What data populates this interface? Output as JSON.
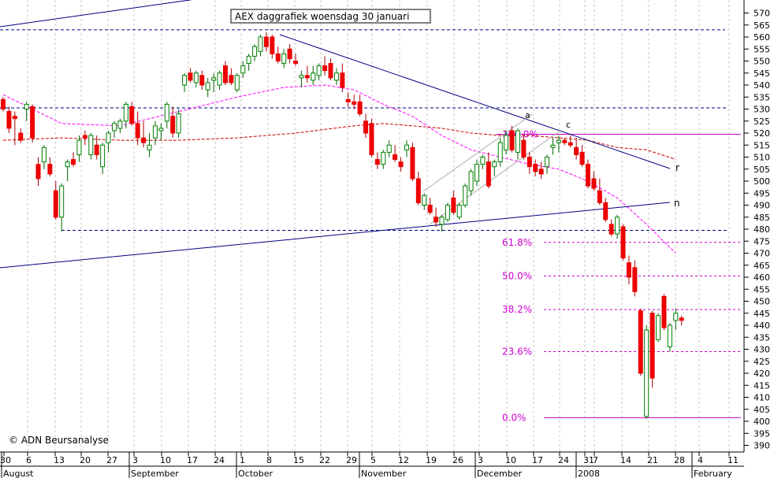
{
  "chart_data": {
    "type": "candlestick",
    "title": "AEX daggrafiek woensdag 30 januari",
    "copyright": "© ADN Beursanalyse",
    "y_ticks": [
      570,
      565,
      560,
      555,
      550,
      545,
      540,
      535,
      530,
      525,
      520,
      515,
      510,
      505,
      500,
      495,
      490,
      485,
      480,
      475,
      470,
      465,
      460,
      455,
      450,
      445,
      440,
      435,
      430,
      425,
      420,
      415,
      410,
      405,
      400,
      395,
      390
    ],
    "ylim": [
      387,
      573
    ],
    "date_ticks": [
      "30",
      "6",
      "13",
      "20",
      "27",
      "3",
      "10",
      "17",
      "24",
      "1",
      "8",
      "15",
      "22",
      "29",
      "5",
      "12",
      "19",
      "26",
      "3",
      "10",
      "17",
      "24",
      "31",
      "7",
      "14",
      "21",
      "28",
      "4",
      "11"
    ],
    "month_labels": [
      "August",
      "September",
      "October",
      "November",
      "December",
      "2008",
      "February"
    ],
    "fib_levels": [
      {
        "label": "100.0%",
        "value": 519.5
      },
      {
        "label": "61.8%",
        "value": 474.5
      },
      {
        "label": "50.0%",
        "value": 460.5
      },
      {
        "label": "38.2%",
        "value": 446.5
      },
      {
        "label": "23.6%",
        "value": 429
      },
      {
        "label": "0.0%",
        "value": 401.5
      }
    ],
    "trendline_labels": [
      "r",
      "n"
    ],
    "wave_labels": [
      "a",
      "c"
    ],
    "candles": [
      {
        "o": 534,
        "h": 535,
        "l": 529,
        "c": 530
      },
      {
        "o": 529,
        "h": 531,
        "l": 520,
        "c": 522
      },
      {
        "o": 527,
        "h": 529,
        "l": 515,
        "c": 526
      },
      {
        "o": 520,
        "h": 522,
        "l": 516,
        "c": 517
      },
      {
        "o": 530,
        "h": 533,
        "l": 525,
        "c": 532
      },
      {
        "o": 531,
        "h": 532,
        "l": 516,
        "c": 518
      },
      {
        "o": 507,
        "h": 510,
        "l": 498,
        "c": 501
      },
      {
        "o": 508,
        "h": 515,
        "l": 505,
        "c": 514
      },
      {
        "o": 507,
        "h": 510,
        "l": 502,
        "c": 503
      },
      {
        "o": 496,
        "h": 500,
        "l": 484,
        "c": 485
      },
      {
        "o": 485,
        "h": 499,
        "l": 479,
        "c": 498
      },
      {
        "o": 506,
        "h": 509,
        "l": 500,
        "c": 508
      },
      {
        "o": 509,
        "h": 512,
        "l": 506,
        "c": 507
      },
      {
        "o": 511,
        "h": 519,
        "l": 508,
        "c": 517
      },
      {
        "o": 519,
        "h": 521,
        "l": 515,
        "c": 518
      },
      {
        "o": 511,
        "h": 520,
        "l": 509,
        "c": 519
      },
      {
        "o": 515,
        "h": 519,
        "l": 509,
        "c": 511
      },
      {
        "o": 506,
        "h": 516,
        "l": 503,
        "c": 515
      },
      {
        "o": 516,
        "h": 521,
        "l": 512,
        "c": 520
      },
      {
        "o": 521,
        "h": 525,
        "l": 518,
        "c": 524
      },
      {
        "o": 522,
        "h": 526,
        "l": 520,
        "c": 525
      },
      {
        "o": 525,
        "h": 533,
        "l": 522,
        "c": 532
      },
      {
        "o": 531,
        "h": 533,
        "l": 523,
        "c": 524
      },
      {
        "o": 524,
        "h": 529,
        "l": 515,
        "c": 518
      },
      {
        "o": 518,
        "h": 525,
        "l": 514,
        "c": 516
      },
      {
        "o": 513,
        "h": 520,
        "l": 510,
        "c": 515
      },
      {
        "o": 518,
        "h": 525,
        "l": 515,
        "c": 523
      },
      {
        "o": 521,
        "h": 524,
        "l": 517,
        "c": 522
      },
      {
        "o": 525,
        "h": 533,
        "l": 522,
        "c": 532
      },
      {
        "o": 527,
        "h": 531,
        "l": 518,
        "c": 520
      },
      {
        "o": 520,
        "h": 530,
        "l": 518,
        "c": 528
      },
      {
        "o": 540,
        "h": 545,
        "l": 537,
        "c": 544
      },
      {
        "o": 545,
        "h": 547,
        "l": 541,
        "c": 542
      },
      {
        "o": 541,
        "h": 546,
        "l": 539,
        "c": 545
      },
      {
        "o": 544,
        "h": 546,
        "l": 538,
        "c": 540
      },
      {
        "o": 538,
        "h": 543,
        "l": 535,
        "c": 541
      },
      {
        "o": 542,
        "h": 545,
        "l": 537,
        "c": 543
      },
      {
        "o": 540,
        "h": 546,
        "l": 538,
        "c": 545
      },
      {
        "o": 548,
        "h": 550,
        "l": 540,
        "c": 541
      },
      {
        "o": 544,
        "h": 547,
        "l": 540,
        "c": 541
      },
      {
        "o": 538,
        "h": 545,
        "l": 537,
        "c": 544
      },
      {
        "o": 545,
        "h": 550,
        "l": 543,
        "c": 548
      },
      {
        "o": 549,
        "h": 553,
        "l": 546,
        "c": 552
      },
      {
        "o": 552,
        "h": 557,
        "l": 550,
        "c": 556
      },
      {
        "o": 554,
        "h": 561,
        "l": 552,
        "c": 560
      },
      {
        "o": 560,
        "h": 562,
        "l": 554,
        "c": 556
      },
      {
        "o": 560,
        "h": 561,
        "l": 551,
        "c": 553
      },
      {
        "o": 553,
        "h": 556,
        "l": 549,
        "c": 550
      },
      {
        "o": 549,
        "h": 555,
        "l": 547,
        "c": 553
      },
      {
        "o": 555,
        "h": 557,
        "l": 549,
        "c": 551
      },
      {
        "o": 550,
        "h": 553,
        "l": 548,
        "c": 549
      },
      {
        "o": 543,
        "h": 546,
        "l": 539,
        "c": 544
      },
      {
        "o": 544,
        "h": 548,
        "l": 541,
        "c": 543
      },
      {
        "o": 542,
        "h": 548,
        "l": 540,
        "c": 545
      },
      {
        "o": 544,
        "h": 549,
        "l": 542,
        "c": 548
      },
      {
        "o": 548,
        "h": 552,
        "l": 544,
        "c": 546
      },
      {
        "o": 549,
        "h": 551,
        "l": 542,
        "c": 543
      },
      {
        "o": 542,
        "h": 547,
        "l": 540,
        "c": 545
      },
      {
        "o": 545,
        "h": 549,
        "l": 537,
        "c": 539
      },
      {
        "o": 534,
        "h": 537,
        "l": 531,
        "c": 533
      },
      {
        "o": 533,
        "h": 536,
        "l": 530,
        "c": 532
      },
      {
        "o": 533,
        "h": 536,
        "l": 527,
        "c": 528
      },
      {
        "o": 525,
        "h": 528,
        "l": 518,
        "c": 520
      },
      {
        "o": 524,
        "h": 526,
        "l": 510,
        "c": 511
      },
      {
        "o": 509,
        "h": 512,
        "l": 505,
        "c": 507
      },
      {
        "o": 507,
        "h": 513,
        "l": 505,
        "c": 512
      },
      {
        "o": 512,
        "h": 517,
        "l": 510,
        "c": 515
      },
      {
        "o": 511,
        "h": 515,
        "l": 508,
        "c": 509
      },
      {
        "o": 508,
        "h": 510,
        "l": 504,
        "c": 506
      },
      {
        "o": 513,
        "h": 517,
        "l": 510,
        "c": 515
      },
      {
        "o": 514,
        "h": 516,
        "l": 500,
        "c": 501
      },
      {
        "o": 501,
        "h": 504,
        "l": 490,
        "c": 491
      },
      {
        "o": 490,
        "h": 495,
        "l": 488,
        "c": 494
      },
      {
        "o": 490,
        "h": 493,
        "l": 486,
        "c": 487
      },
      {
        "o": 485,
        "h": 489,
        "l": 481,
        "c": 483
      },
      {
        "o": 482,
        "h": 486,
        "l": 479,
        "c": 485
      },
      {
        "o": 484,
        "h": 491,
        "l": 483,
        "c": 490
      },
      {
        "o": 493,
        "h": 496,
        "l": 486,
        "c": 487
      },
      {
        "o": 485,
        "h": 491,
        "l": 484,
        "c": 490
      },
      {
        "o": 490,
        "h": 499,
        "l": 489,
        "c": 498
      },
      {
        "o": 496,
        "h": 505,
        "l": 494,
        "c": 504
      },
      {
        "o": 500,
        "h": 509,
        "l": 498,
        "c": 507
      },
      {
        "o": 507,
        "h": 511,
        "l": 505,
        "c": 510
      },
      {
        "o": 508,
        "h": 512,
        "l": 497,
        "c": 498
      },
      {
        "o": 506,
        "h": 509,
        "l": 502,
        "c": 508
      },
      {
        "o": 508,
        "h": 518,
        "l": 506,
        "c": 516
      },
      {
        "o": 513,
        "h": 521,
        "l": 511,
        "c": 519
      },
      {
        "o": 521,
        "h": 523,
        "l": 512,
        "c": 513
      },
      {
        "o": 512,
        "h": 522,
        "l": 509,
        "c": 521
      },
      {
        "o": 517,
        "h": 519,
        "l": 509,
        "c": 510
      },
      {
        "o": 510,
        "h": 512,
        "l": 503,
        "c": 506
      },
      {
        "o": 507,
        "h": 509,
        "l": 502,
        "c": 504
      },
      {
        "o": 505,
        "h": 508,
        "l": 501,
        "c": 503
      },
      {
        "o": 506,
        "h": 511,
        "l": 503,
        "c": 510
      },
      {
        "o": 514,
        "h": 518,
        "l": 511,
        "c": 515
      },
      {
        "o": 516,
        "h": 519,
        "l": 512,
        "c": 517
      },
      {
        "o": 517,
        "h": 518,
        "l": 515,
        "c": 516
      },
      {
        "o": 516,
        "h": 519,
        "l": 514,
        "c": 515
      },
      {
        "o": 514,
        "h": 518,
        "l": 509,
        "c": 511
      },
      {
        "o": 512,
        "h": 515,
        "l": 506,
        "c": 507
      },
      {
        "o": 507,
        "h": 509,
        "l": 497,
        "c": 498
      },
      {
        "o": 501,
        "h": 504,
        "l": 496,
        "c": 497
      },
      {
        "o": 496,
        "h": 501,
        "l": 490,
        "c": 491
      },
      {
        "o": 491,
        "h": 493,
        "l": 483,
        "c": 484
      },
      {
        "o": 482,
        "h": 484,
        "l": 477,
        "c": 478
      },
      {
        "o": 478,
        "h": 486,
        "l": 476,
        "c": 485
      },
      {
        "o": 481,
        "h": 482,
        "l": 467,
        "c": 468
      },
      {
        "o": 466,
        "h": 469,
        "l": 457,
        "c": 460
      },
      {
        "o": 464,
        "h": 467,
        "l": 452,
        "c": 454
      },
      {
        "o": 446,
        "h": 447,
        "l": 419,
        "c": 420
      },
      {
        "o": 402,
        "h": 440,
        "l": 401,
        "c": 438
      },
      {
        "o": 445,
        "h": 446,
        "l": 414,
        "c": 418
      },
      {
        "o": 434,
        "h": 445,
        "l": 433,
        "c": 444
      },
      {
        "o": 452,
        "h": 453,
        "l": 438,
        "c": 439
      },
      {
        "o": 431,
        "h": 441,
        "l": 429,
        "c": 440
      },
      {
        "o": 442,
        "h": 447,
        "l": 438,
        "c": 445
      },
      {
        "o": 443,
        "h": 444,
        "l": 440,
        "c": 442
      }
    ],
    "ma_short": [
      [
        0,
        536
      ],
      [
        10,
        524
      ],
      [
        20,
        523
      ],
      [
        30,
        529
      ],
      [
        40,
        535
      ],
      [
        48,
        539
      ],
      [
        55,
        540
      ],
      [
        60,
        538
      ],
      [
        65,
        532
      ],
      [
        70,
        527
      ],
      [
        75,
        519
      ],
      [
        80,
        513
      ],
      [
        85,
        510
      ],
      [
        90,
        507
      ],
      [
        95,
        505
      ],
      [
        100,
        500
      ],
      [
        105,
        493
      ],
      [
        110,
        482
      ],
      [
        115,
        470
      ]
    ],
    "ma_long": [
      [
        0,
        517
      ],
      [
        10,
        518
      ],
      [
        20,
        517
      ],
      [
        30,
        517
      ],
      [
        40,
        518
      ],
      [
        50,
        520
      ],
      [
        60,
        523
      ],
      [
        65,
        524
      ],
      [
        70,
        523
      ],
      [
        75,
        522
      ],
      [
        80,
        520
      ],
      [
        85,
        519
      ],
      [
        90,
        519
      ],
      [
        95,
        518
      ],
      [
        100,
        517
      ],
      [
        105,
        514
      ],
      [
        110,
        513
      ],
      [
        115,
        509
      ]
    ]
  }
}
